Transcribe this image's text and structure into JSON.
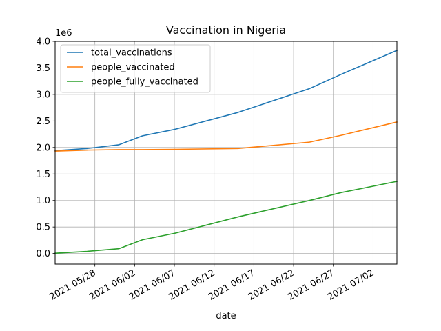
{
  "chart_data": {
    "type": "line",
    "title": "Vaccination in Nigeria",
    "xlabel": "date",
    "ylabel": "",
    "y_offset_text": "1e6",
    "ylim": [
      -0.2,
      4.0
    ],
    "xlim": [
      "2021-05-23",
      "2021-07-05"
    ],
    "grid": true,
    "legend_position": "upper left",
    "x_tick_labels": [
      {
        "date": "2021-05-28",
        "label": "2021 05/28"
      },
      {
        "date": "2021-06-02",
        "label": "2021 06/02"
      },
      {
        "date": "2021-06-07",
        "label": "2021 06/07"
      },
      {
        "date": "2021-06-12",
        "label": "2021 06/12"
      },
      {
        "date": "2021-06-17",
        "label": "2021 06/17"
      },
      {
        "date": "2021-06-22",
        "label": "2021 06/22"
      },
      {
        "date": "2021-06-27",
        "label": "2021 06/27"
      },
      {
        "date": "2021-07-02",
        "label": "2021 07/02"
      }
    ],
    "y_ticks": [
      0.0,
      0.5,
      1.0,
      1.5,
      2.0,
      2.5,
      3.0,
      3.5,
      4.0
    ],
    "y_tick_labels": [
      "0.0",
      "0.5",
      "1.0",
      "1.5",
      "2.0",
      "2.5",
      "3.0",
      "3.5",
      "4.0"
    ],
    "series": [
      {
        "name": "total_vaccinations",
        "color": "#1f77b4",
        "points": [
          [
            "2021-05-23",
            1.94
          ],
          [
            "2021-05-27",
            1.98
          ],
          [
            "2021-05-31",
            2.05
          ],
          [
            "2021-06-03",
            2.22
          ],
          [
            "2021-06-07",
            2.34
          ],
          [
            "2021-06-15",
            2.66
          ],
          [
            "2021-06-24",
            3.11
          ],
          [
            "2021-06-28",
            3.38
          ],
          [
            "2021-07-05",
            3.83
          ]
        ]
      },
      {
        "name": "people_vaccinated",
        "color": "#ff7f0e",
        "points": [
          [
            "2021-05-23",
            1.93
          ],
          [
            "2021-05-27",
            1.95
          ],
          [
            "2021-05-31",
            1.96
          ],
          [
            "2021-06-03",
            1.96
          ],
          [
            "2021-06-07",
            1.965
          ],
          [
            "2021-06-15",
            1.98
          ],
          [
            "2021-06-24",
            2.1
          ],
          [
            "2021-06-28",
            2.23
          ],
          [
            "2021-07-05",
            2.48
          ]
        ]
      },
      {
        "name": "people_fully_vaccinated",
        "color": "#2ca02c",
        "points": [
          [
            "2021-05-23",
            0.005
          ],
          [
            "2021-05-27",
            0.04
          ],
          [
            "2021-05-31",
            0.09
          ],
          [
            "2021-06-03",
            0.26
          ],
          [
            "2021-06-07",
            0.38
          ],
          [
            "2021-06-15",
            0.69
          ],
          [
            "2021-06-24",
            1.0
          ],
          [
            "2021-06-28",
            1.15
          ],
          [
            "2021-07-05",
            1.36
          ]
        ]
      }
    ]
  }
}
